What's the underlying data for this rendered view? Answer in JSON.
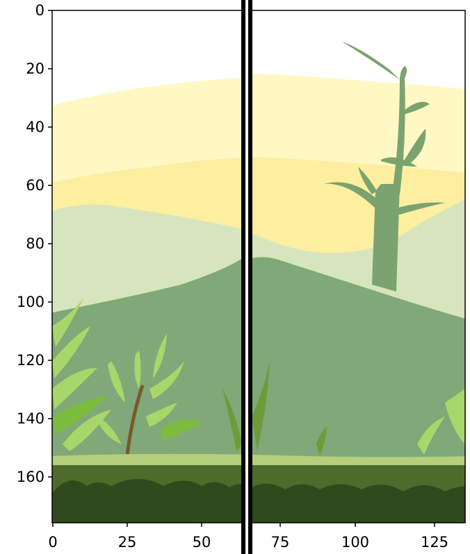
{
  "figure": {
    "x_ticks": [
      "0",
      "25",
      "50",
      "75",
      "100",
      "125"
    ],
    "y_ticks": [
      "0",
      "20",
      "40",
      "60",
      "80",
      "100",
      "120",
      "140",
      "160"
    ]
  },
  "scene": {
    "colors": {
      "sky_top": "#ffffff",
      "band_pale": "#fff8c4",
      "band_yellow": "#fdeea0",
      "hill_light": "#d6e5bd",
      "hill_mid": "#80a878",
      "plant_silhouette": "#7aa36f",
      "fern_light": "#a9d66a",
      "fern_mid": "#7dbb3f",
      "grass_top": "#b5cf7d",
      "ground": "#4d6b2b",
      "ground_dark": "#2f4a1d",
      "stem": "#7a5a28",
      "divider": "#000000"
    },
    "icons": [
      "hill-icon",
      "plant-silhouette-icon",
      "fern-icon",
      "grass-icon",
      "ground-scallop-icon"
    ]
  }
}
